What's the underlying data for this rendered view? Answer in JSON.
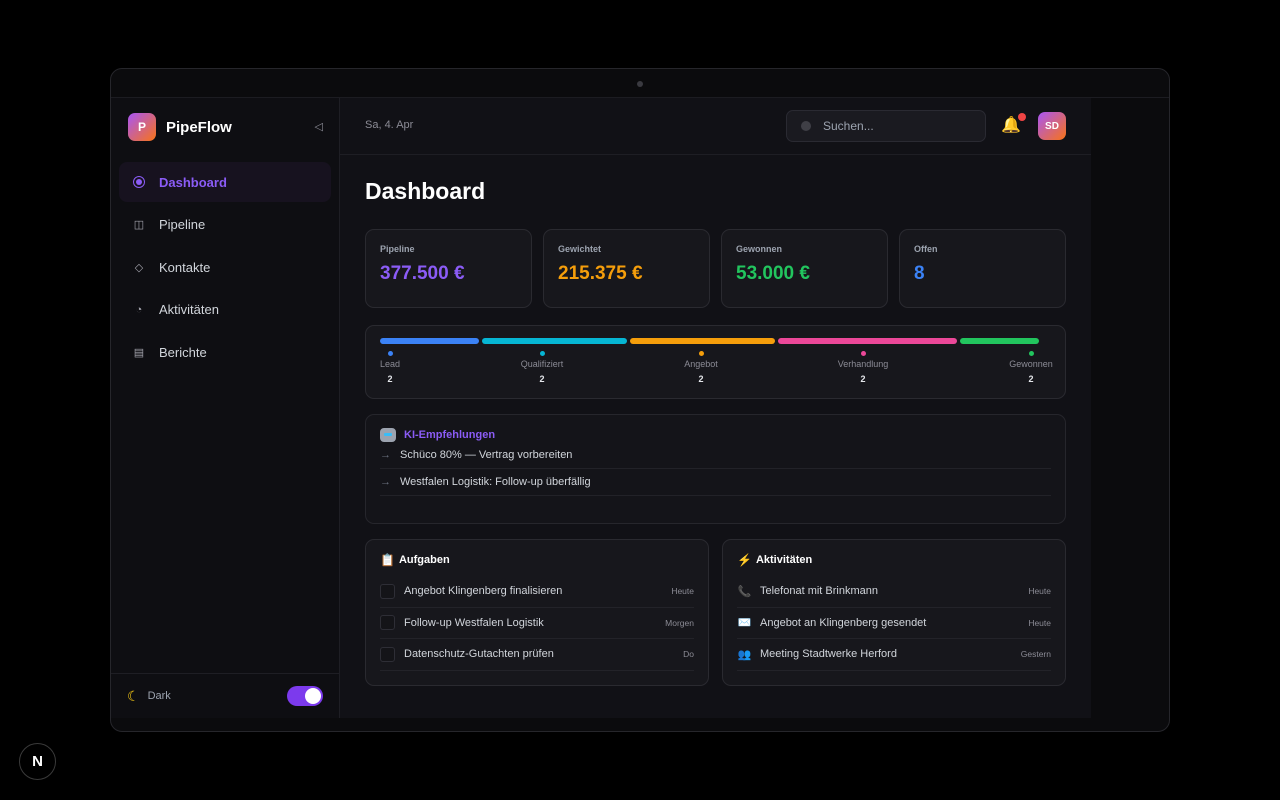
{
  "app": {
    "name": "PipeFlow",
    "logo_letter": "P"
  },
  "sidebar": {
    "collapse_icon": "triangle-left-icon",
    "items": [
      {
        "label": "Dashboard",
        "icon": "radio-dot-icon",
        "active": true
      },
      {
        "label": "Pipeline",
        "icon": "columns-icon",
        "active": false
      },
      {
        "label": "Kontakte",
        "icon": "diamond-icon",
        "active": false
      },
      {
        "label": "Aktivitäten",
        "icon": "pie-icon",
        "active": false
      },
      {
        "label": "Berichte",
        "icon": "list-icon",
        "active": false
      }
    ],
    "footer": {
      "theme_label": "Dark",
      "dark_mode": true
    }
  },
  "header": {
    "date": "Sa, 4. Apr",
    "search_placeholder": "Suchen...",
    "avatar_initials": "SD",
    "notification_dot": true
  },
  "page": {
    "title": "Dashboard"
  },
  "kpis": [
    {
      "label": "Pipeline",
      "value": "377.500 €",
      "color": "#8b5cf6"
    },
    {
      "label": "Gewichtet",
      "value": "215.375 €",
      "color": "#f59e0b"
    },
    {
      "label": "Gewonnen",
      "value": "53.000 €",
      "color": "#22c55e"
    },
    {
      "label": "Offen",
      "value": "8",
      "color": "#3b82f6"
    }
  ],
  "pipeline_stages": [
    {
      "name": "Lead",
      "count": "2",
      "color": "#3b82f6",
      "share": 0.15
    },
    {
      "name": "Qualifiziert",
      "count": "2",
      "color": "#06b6d4",
      "share": 0.22
    },
    {
      "name": "Angebot",
      "count": "2",
      "color": "#f59e0b",
      "share": 0.22
    },
    {
      "name": "Verhandlung",
      "count": "2",
      "color": "#ec4899",
      "share": 0.27
    },
    {
      "name": "Gewonnen",
      "count": "2",
      "color": "#22c55e",
      "share": 0.12
    }
  ],
  "ai": {
    "title": "KI-Empfehlungen",
    "items": [
      "Schüco 80% — Vertrag vorbereiten",
      "Westfalen Logistik: Follow-up überfällig"
    ]
  },
  "tasks": {
    "title": "Aufgaben",
    "icon": "clipboard-icon",
    "items": [
      {
        "label": "Angebot Klingenberg finalisieren",
        "due": "Heute"
      },
      {
        "label": "Follow-up Westfalen Logistik",
        "due": "Morgen"
      },
      {
        "label": "Datenschutz-Gutachten prüfen",
        "due": "Do"
      }
    ]
  },
  "activities": {
    "title": "Aktivitäten",
    "icon": "lightning-icon",
    "items": [
      {
        "label": "Telefonat mit Brinkmann",
        "when": "Heute",
        "icon": "phone-icon"
      },
      {
        "label": "Angebot an Klingenberg gesendet",
        "when": "Heute",
        "icon": "envelope-icon"
      },
      {
        "label": "Meeting Stadtwerke Herford",
        "when": "Gestern",
        "icon": "people-icon"
      }
    ]
  },
  "corner_badge": "N"
}
